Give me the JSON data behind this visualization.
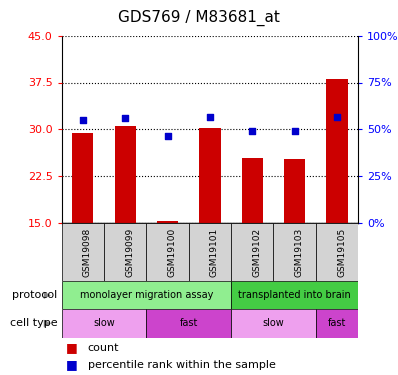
{
  "title": "GDS769 / M83681_at",
  "samples": [
    "GSM19098",
    "GSM19099",
    "GSM19100",
    "GSM19101",
    "GSM19102",
    "GSM19103",
    "GSM19105"
  ],
  "bar_values": [
    29.5,
    30.5,
    15.3,
    30.2,
    25.5,
    25.2,
    38.0
  ],
  "dot_values": [
    31.5,
    31.8,
    29.0,
    32.0,
    29.8,
    29.8,
    32.0
  ],
  "ylim": [
    15,
    45
  ],
  "yticks": [
    15,
    22.5,
    30,
    37.5,
    45
  ],
  "right_yticks": [
    0,
    25,
    50,
    75,
    100
  ],
  "bar_color": "#cc0000",
  "dot_color": "#0000cc",
  "bar_bottom": 15,
  "protocol_groups": [
    {
      "label": "monolayer migration assay",
      "start": 0,
      "end": 4,
      "color": "#90ee90"
    },
    {
      "label": "transplanted into brain",
      "start": 4,
      "end": 7,
      "color": "#44cc44"
    }
  ],
  "cell_type_groups": [
    {
      "label": "slow",
      "start": 0,
      "end": 2,
      "color": "#eea0ee"
    },
    {
      "label": "fast",
      "start": 2,
      "end": 4,
      "color": "#cc44cc"
    },
    {
      "label": "slow",
      "start": 4,
      "end": 6,
      "color": "#eea0ee"
    },
    {
      "label": "fast",
      "start": 6,
      "end": 7,
      "color": "#cc44cc"
    }
  ],
  "protocol_label": "protocol",
  "cell_type_label": "cell type",
  "legend_count_label": "count",
  "legend_pct_label": "percentile rank within the sample",
  "sample_box_color": "#d3d3d3",
  "title_fontsize": 11,
  "tick_fontsize": 8,
  "label_fontsize": 8,
  "bar_fontsize": 7,
  "sample_fontsize": 6.5
}
